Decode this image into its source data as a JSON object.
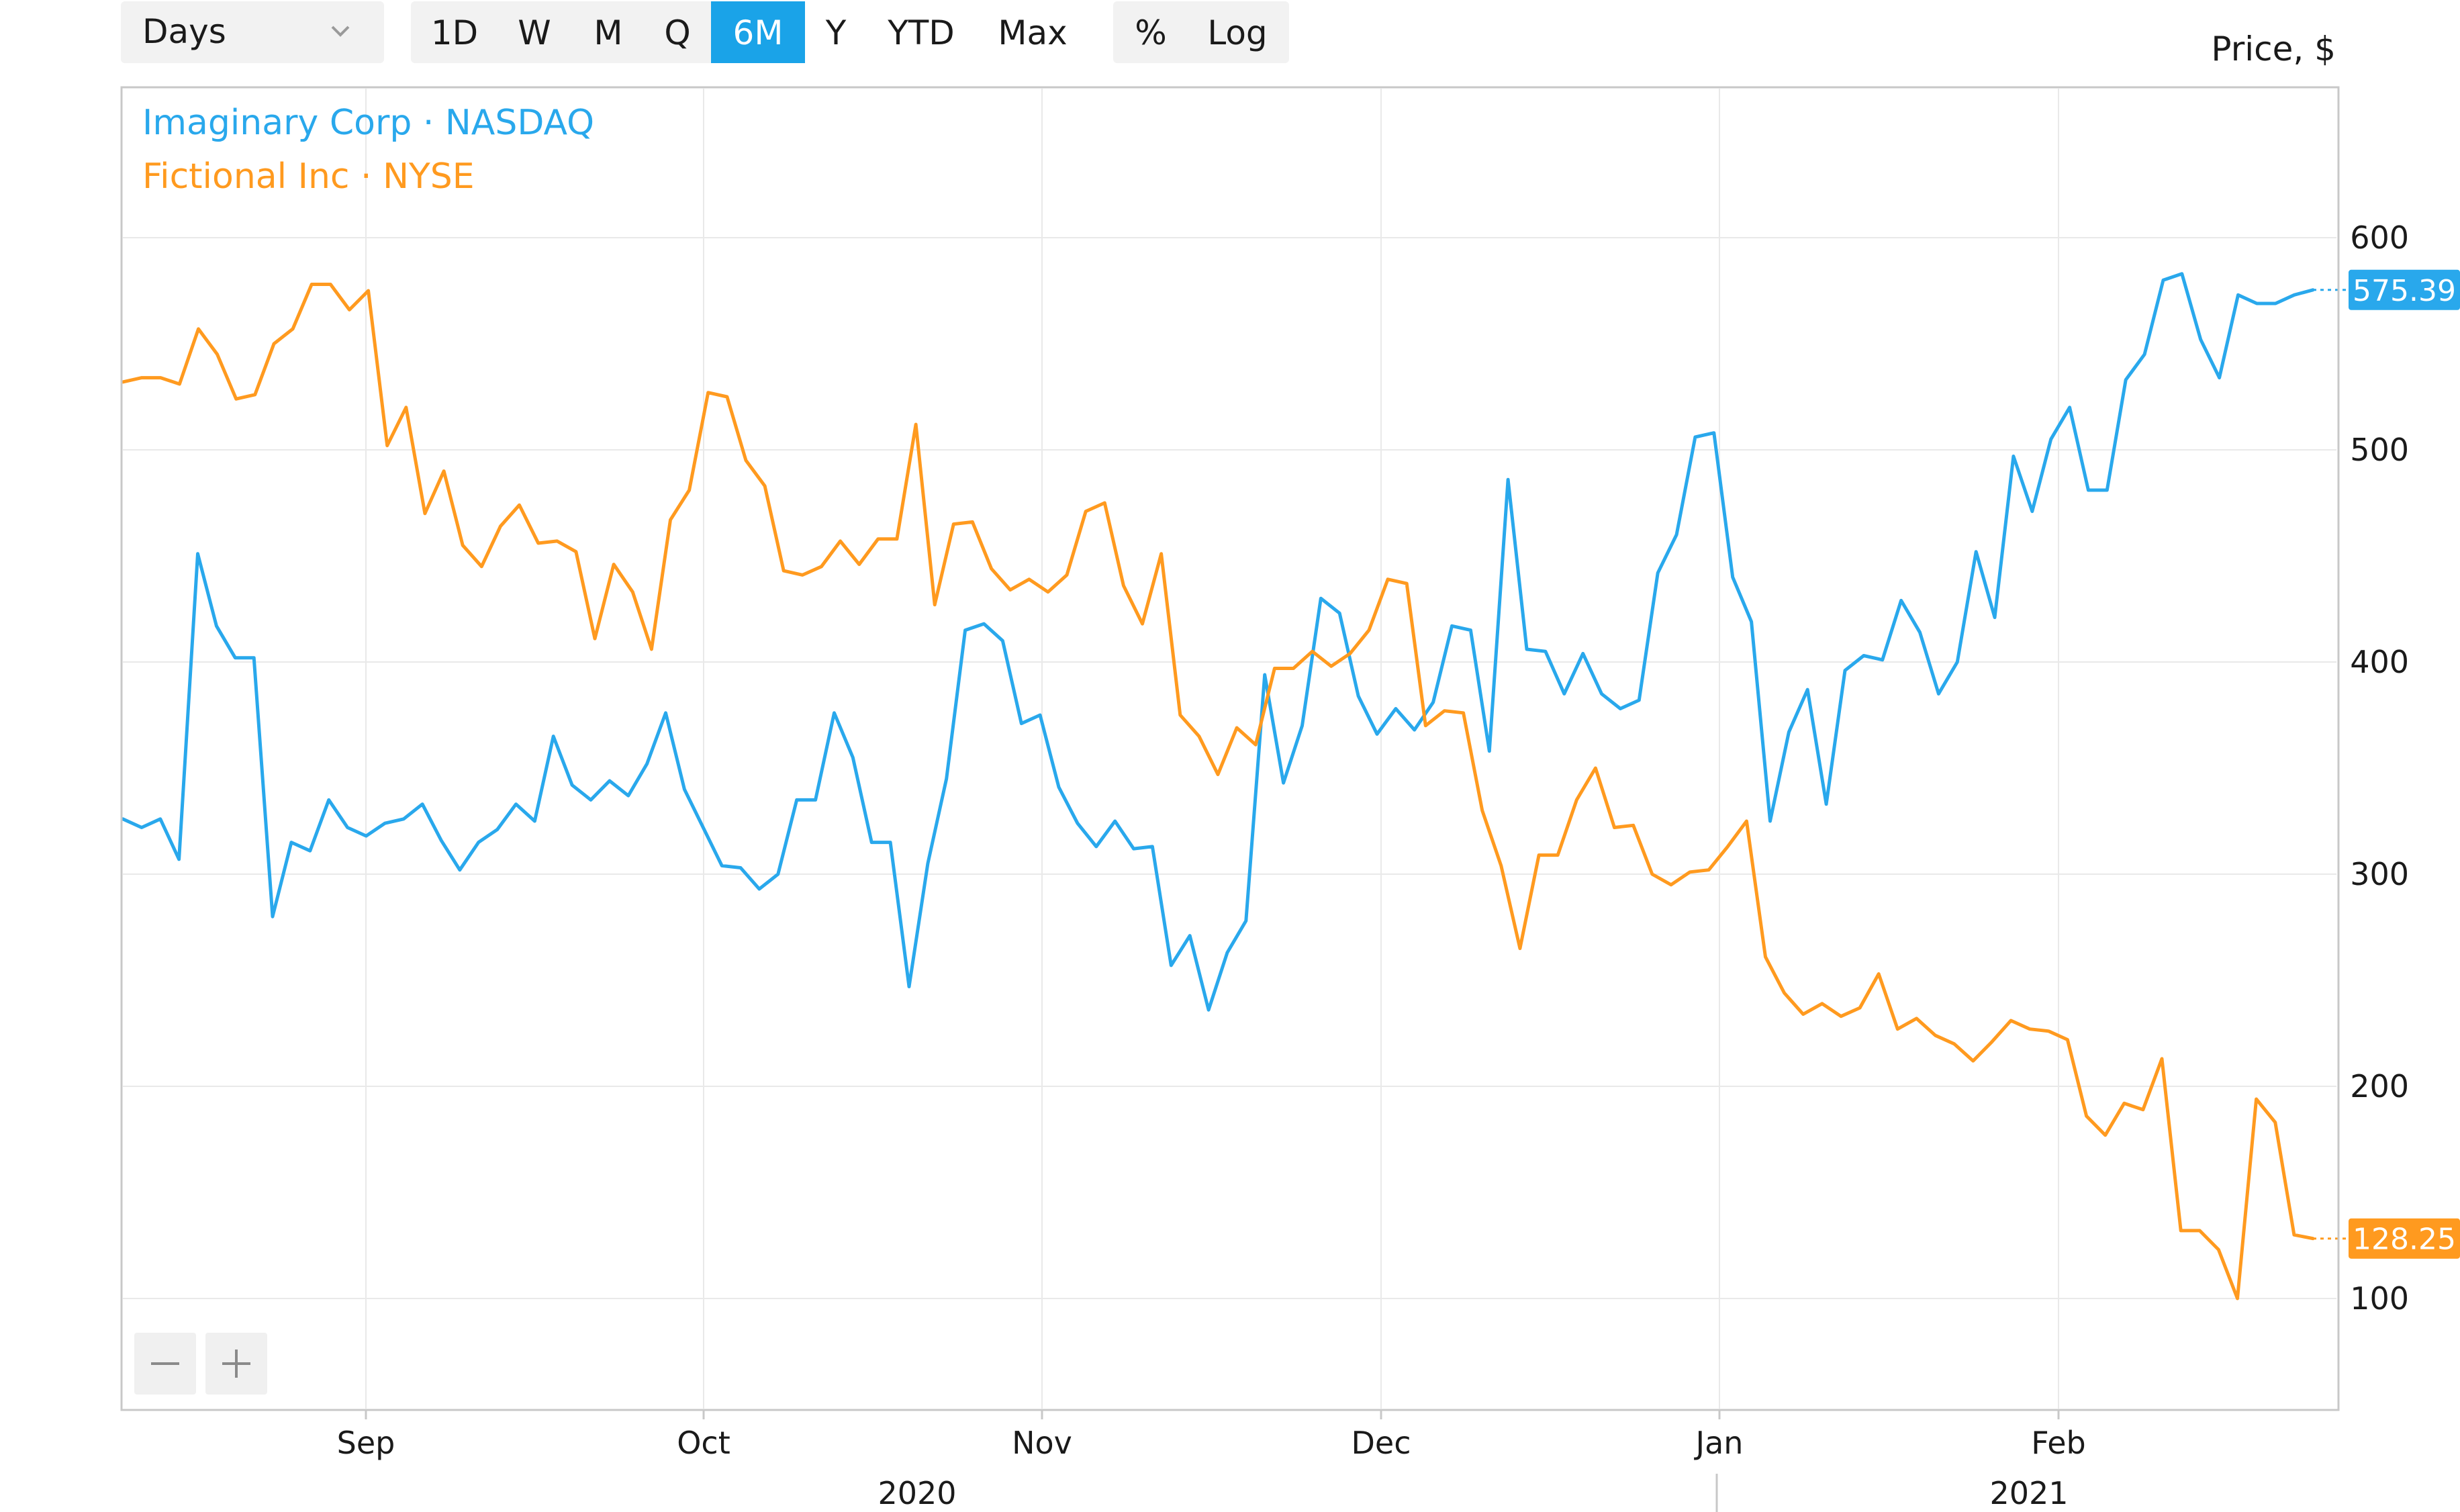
{
  "toolbar": {
    "interval_select": {
      "value": "Days"
    },
    "ranges": [
      {
        "label": "1D",
        "active": false
      },
      {
        "label": "W",
        "active": false
      },
      {
        "label": "M",
        "active": false
      },
      {
        "label": "Q",
        "active": false
      },
      {
        "label": "6M",
        "active": true
      },
      {
        "label": "Y",
        "active": false
      },
      {
        "label": "YTD",
        "active": false
      },
      {
        "label": "Max",
        "active": false
      }
    ],
    "scale_buttons": [
      {
        "label": "%"
      },
      {
        "label": "Log"
      }
    ],
    "zoom_out_icon": "minus-icon",
    "zoom_in_icon": "plus-icon"
  },
  "colors": {
    "accent": "#1aa3e8",
    "series_blue": "#29a8ec",
    "series_orange": "#ff9a1f",
    "button_bg": "#f2f2f2",
    "grid": "#e9e9e9",
    "frame": "#c8c8c8"
  },
  "chart_data": {
    "type": "line",
    "ylabel": "Price, $",
    "ylim": [
      47,
      700
    ],
    "y_ticks": [
      100,
      200,
      300,
      400,
      500,
      600
    ],
    "grid": true,
    "legend_position": "top-left",
    "x_month_labels": [
      "Sep",
      "Oct",
      "Nov",
      "Dec",
      "Jan",
      "Feb"
    ],
    "x_year_labels": [
      "2020",
      "2021"
    ],
    "series": [
      {
        "name": "Imaginary Corp · NASDAQ",
        "color": "#29a8ec",
        "last_value": "575.39",
        "values": [
          326,
          322,
          326,
          307,
          451,
          417,
          402,
          402,
          280,
          315,
          311,
          335,
          322,
          318,
          324,
          326,
          333,
          316,
          302,
          315,
          321,
          333,
          325,
          365,
          342,
          335,
          344,
          337,
          352,
          376,
          340,
          322,
          304,
          303,
          293,
          300,
          335,
          335,
          376,
          355,
          315,
          315,
          247,
          305,
          345,
          415,
          418,
          410,
          371,
          375,
          341,
          324,
          313,
          325,
          312,
          313,
          257,
          271,
          236,
          263,
          278,
          394,
          343,
          370,
          430,
          423,
          384,
          366,
          378,
          368,
          381,
          417,
          415,
          358,
          486,
          406,
          405,
          385,
          404,
          385,
          378,
          382,
          442,
          460,
          506,
          508,
          440,
          419,
          325,
          367,
          387,
          333,
          396,
          403,
          401,
          429,
          414,
          385,
          400,
          452,
          421,
          497,
          471,
          505,
          520,
          481,
          481,
          533,
          545,
          580,
          583,
          552,
          534,
          573,
          569,
          569,
          573,
          575.39
        ]
      },
      {
        "name": "Fictional Inc · NYSE",
        "color": "#ff9a1f",
        "last_value": "128.25",
        "values": [
          532,
          534,
          534,
          531,
          557,
          545,
          524,
          526,
          550,
          557,
          578,
          578,
          566,
          575,
          502,
          520,
          470,
          490,
          455,
          445,
          464,
          474,
          456,
          457,
          452,
          411,
          446,
          433,
          406,
          467,
          481,
          527,
          525,
          495,
          483,
          443,
          441,
          445,
          457,
          446,
          458,
          458,
          512,
          427,
          465,
          466,
          444,
          434,
          439,
          433,
          441,
          471,
          475,
          436,
          418,
          451,
          375,
          365,
          347,
          369,
          361,
          397,
          397,
          405,
          398,
          404,
          415,
          439,
          437,
          370,
          377,
          376,
          330,
          304,
          265,
          309,
          309,
          335,
          350,
          322,
          323,
          300,
          295,
          301,
          302,
          313,
          325,
          261,
          244,
          234,
          239,
          233,
          237,
          253,
          227,
          232,
          224,
          220,
          212,
          221,
          231,
          227,
          226,
          222,
          186,
          177,
          192,
          189,
          213,
          132,
          132,
          123,
          100,
          194,
          183,
          130,
          128.25
        ]
      }
    ]
  }
}
